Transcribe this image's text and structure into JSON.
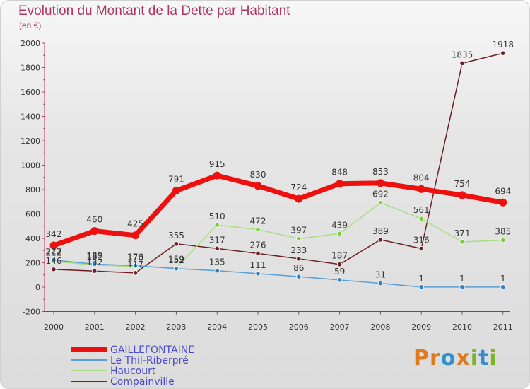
{
  "header": {
    "title": "Evolution du Montant de la Dette par Habitant",
    "subtitle": "(en €)"
  },
  "logo": {
    "text": "Proxiti",
    "letters": [
      {
        "ch": "P",
        "color": "#e07a1f"
      },
      {
        "ch": "r",
        "color": "#e07a1f"
      },
      {
        "ch": "o",
        "color": "#2f8fd2"
      },
      {
        "ch": "x",
        "color": "#e07a1f"
      },
      {
        "ch": "i",
        "color": "#7ab52a"
      },
      {
        "ch": "t",
        "color": "#2f8fd2"
      },
      {
        "ch": "i",
        "color": "#7ab52a"
      }
    ]
  },
  "chart_data": {
    "type": "line",
    "title": "Evolution du Montant de la Dette par Habitant",
    "subtitle": "(en €)",
    "xlabel": "",
    "ylabel": "",
    "categories": [
      "2000",
      "2001",
      "2002",
      "2003",
      "2004",
      "2005",
      "2006",
      "2007",
      "2008",
      "2009",
      "2010",
      "2011"
    ],
    "ylim": [
      -200,
      2000
    ],
    "yticks": [
      -200,
      0,
      200,
      400,
      600,
      800,
      1000,
      1200,
      1400,
      1600,
      1800,
      2000
    ],
    "grid": false,
    "legend_position": "bottom-left",
    "series": [
      {
        "name": "GAILLEFONTAINE",
        "color": "#ee0f0f",
        "marker": "#ee0f0f",
        "width": 7,
        "values": [
          342,
          460,
          425,
          791,
          915,
          830,
          724,
          848,
          853,
          804,
          754,
          694
        ]
      },
      {
        "name": "Le Thil-Riberpré",
        "color": "#5a9fd4",
        "marker": "#2f7fc1",
        "width": 1.5,
        "values": [
          222,
          189,
          176,
          152,
          135,
          111,
          86,
          59,
          31,
          1,
          1,
          1
        ]
      },
      {
        "name": "Haucourt",
        "color": "#a8dd82",
        "marker": "#7ccf3a",
        "width": 1.5,
        "values": [
          212,
          181,
          170,
          159,
          510,
          472,
          397,
          439,
          692,
          561,
          371,
          385
        ]
      },
      {
        "name": "Compainville",
        "color": "#6b1f26",
        "marker": "#6b1f26",
        "width": 1.5,
        "values": [
          146,
          132,
          117,
          355,
          317,
          276,
          233,
          187,
          389,
          316,
          1835,
          1918
        ]
      }
    ]
  }
}
